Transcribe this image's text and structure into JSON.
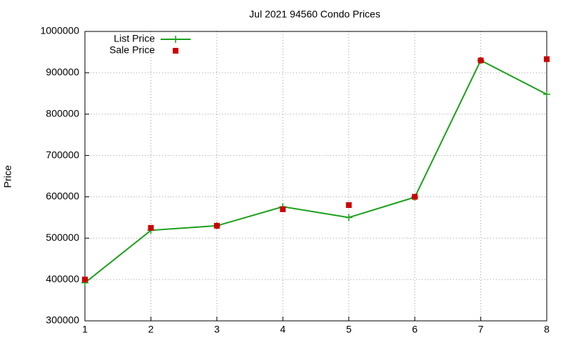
{
  "chart_data": {
    "type": "line",
    "title": "Jul 2021 94560 Condo Prices",
    "y_label": "Price",
    "x": [
      1,
      2,
      3,
      4,
      5,
      6,
      7,
      8
    ],
    "series": [
      {
        "name": "List Price",
        "color": "#1ea01e",
        "mode": "lines+markers",
        "values": [
          392000,
          519000,
          530000,
          576000,
          550000,
          599000,
          930000,
          848000
        ]
      },
      {
        "name": "Sale Price",
        "color": "#cc0000",
        "mode": "markers",
        "values": [
          400000,
          525000,
          530000,
          570000,
          580000,
          600000,
          930000,
          933000
        ]
      }
    ],
    "xlim": [
      1,
      8
    ],
    "xticks": [
      1,
      2,
      3,
      4,
      5,
      6,
      7,
      8
    ],
    "ylim": [
      300000,
      1000000
    ],
    "yticks": [
      300000,
      400000,
      500000,
      600000,
      700000,
      800000,
      900000,
      1000000
    ],
    "grid": true,
    "legend": "top-left"
  }
}
